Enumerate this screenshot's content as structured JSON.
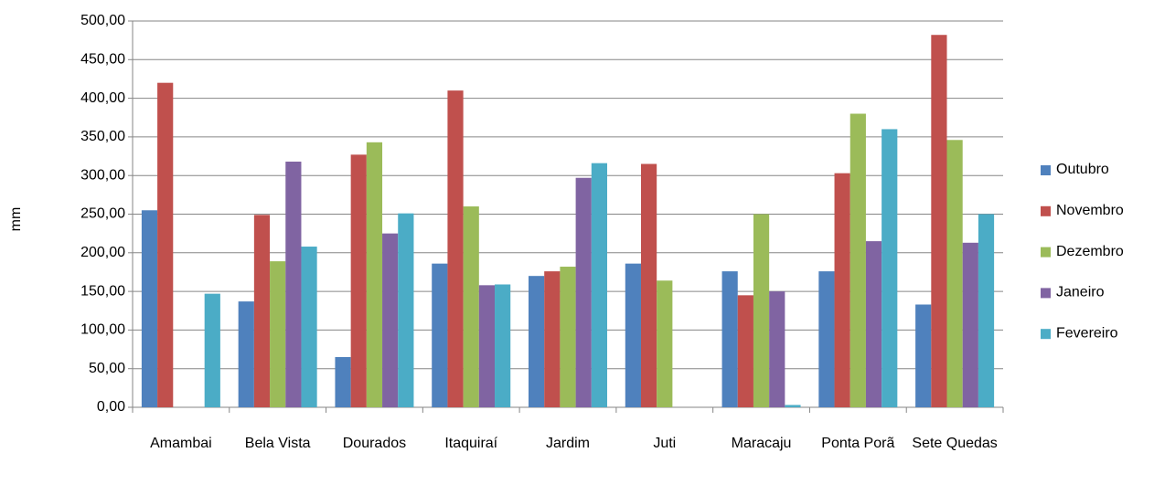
{
  "chart_data": {
    "type": "bar",
    "y_label": "mm",
    "categories": [
      "Amambai",
      "Bela Vista",
      "Dourados",
      "Itaquiraí",
      "Jardim",
      "Juti",
      "Maracaju",
      "Ponta Porã",
      "Sete Quedas"
    ],
    "series": [
      {
        "name": "Outubro",
        "color": "#4f81bd",
        "values": [
          255,
          137,
          65,
          186,
          170,
          186,
          176,
          176,
          133
        ]
      },
      {
        "name": "Novembro",
        "color": "#c0504d",
        "values": [
          420,
          249,
          327,
          410,
          176,
          315,
          145,
          303,
          482
        ]
      },
      {
        "name": "Dezembro",
        "color": "#9bbb59",
        "values": [
          null,
          189,
          343,
          260,
          182,
          164,
          250,
          380,
          346
        ]
      },
      {
        "name": "Janeiro",
        "color": "#8064a2",
        "values": [
          null,
          318,
          225,
          158,
          297,
          null,
          150,
          215,
          213
        ]
      },
      {
        "name": "Fevereiro",
        "color": "#4bacc6",
        "values": [
          147,
          208,
          251,
          159,
          316,
          null,
          3,
          360,
          250
        ]
      }
    ],
    "ylim": [
      0,
      500
    ],
    "yticks": [
      {
        "value": 0,
        "label": "0,00"
      },
      {
        "value": 50,
        "label": "50,00"
      },
      {
        "value": 100,
        "label": "100,00"
      },
      {
        "value": 150,
        "label": "150,00"
      },
      {
        "value": 200,
        "label": "200,00"
      },
      {
        "value": 250,
        "label": "250,00"
      },
      {
        "value": 300,
        "label": "300,00"
      },
      {
        "value": 350,
        "label": "350,00"
      },
      {
        "value": 400,
        "label": "400,00"
      },
      {
        "value": 450,
        "label": "450,00"
      },
      {
        "value": 500,
        "label": "500,00"
      }
    ],
    "grid": true,
    "legend": "right"
  }
}
